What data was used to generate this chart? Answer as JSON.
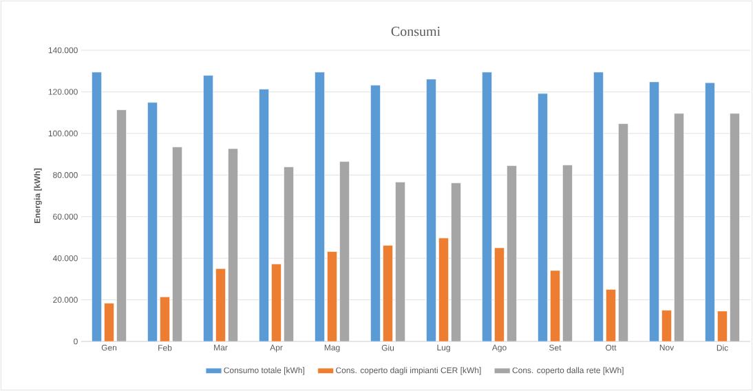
{
  "chart_data": {
    "type": "bar",
    "title": "Consumi",
    "ylabel": "Energia [kWh]",
    "categories": [
      "Gen",
      "Feb",
      "Mar",
      "Apr",
      "Mag",
      "Giu",
      "Lug",
      "Ago",
      "Set",
      "Ott",
      "Nov",
      "Dic"
    ],
    "series": [
      {
        "name": "Consumo totale [kWh]",
        "color": "#5b9bd5",
        "values": [
          129500,
          114900,
          127900,
          121300,
          129500,
          123200,
          126100,
          129500,
          119200,
          129500,
          124800,
          124400
        ]
      },
      {
        "name": "Cons. coperto dagli impianti CER [kWh]",
        "color": "#ed7d31",
        "values": [
          18400,
          21400,
          35000,
          37200,
          43200,
          46200,
          49700,
          45000,
          34100,
          25000,
          15000,
          14600
        ]
      },
      {
        "name": "Cons. coperto dalla rete [kWh]",
        "color": "#a5a5a5",
        "values": [
          111400,
          93500,
          92700,
          83900,
          86500,
          76600,
          76200,
          84500,
          84800,
          104700,
          109600,
          109600
        ]
      }
    ],
    "ylim": [
      0,
      140000
    ],
    "yticks": [
      0,
      {
        "value": 20000,
        "label": "20.000"
      },
      {
        "value": 40000,
        "label": "40.000"
      },
      {
        "value": 60000,
        "label": "60.000"
      },
      {
        "value": 80000,
        "label": "80.000"
      },
      {
        "value": 100000,
        "label": "100.000"
      },
      {
        "value": 120000,
        "label": "120.000"
      },
      {
        "value": 140000,
        "label": "140.000"
      }
    ],
    "grid": "y",
    "legend": "bottom"
  }
}
